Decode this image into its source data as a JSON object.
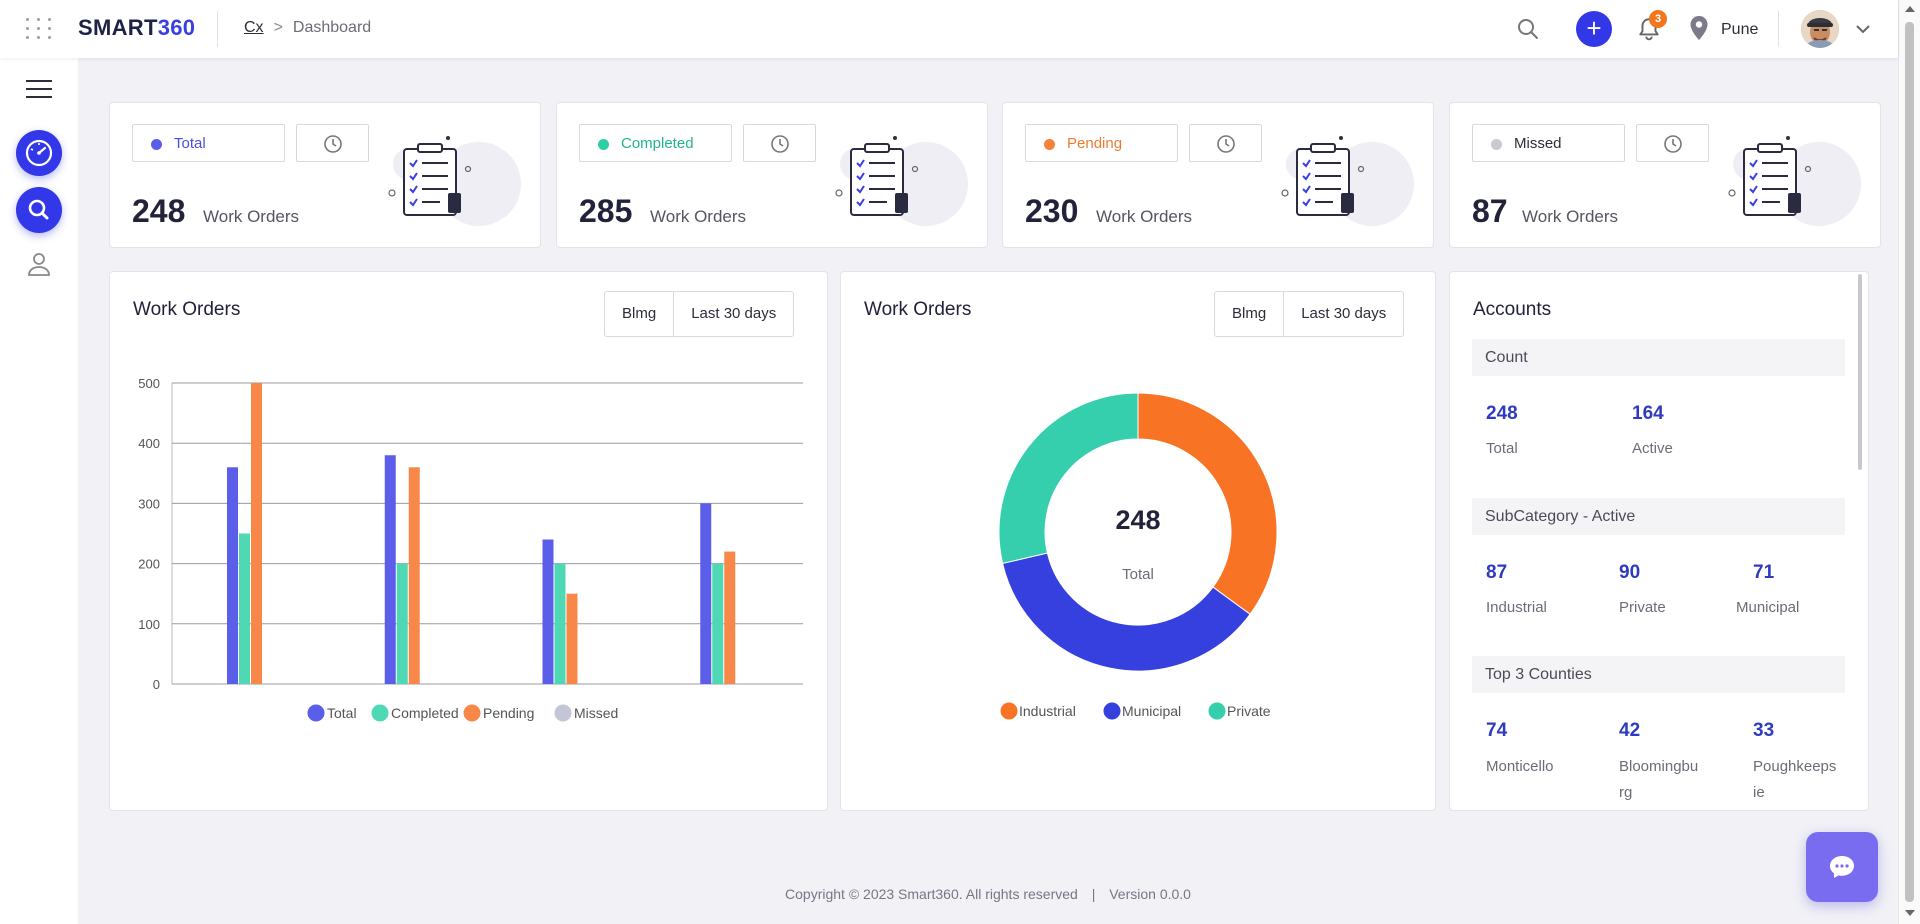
{
  "header": {
    "brand_part1": "SMART",
    "brand_part2": "360",
    "breadcrumb_root": "Cx",
    "breadcrumb_sep": ">",
    "breadcrumb_current": "Dashboard",
    "notifications_count": "3",
    "location": "Pune",
    "add_label": "+"
  },
  "stats": [
    {
      "label": "Total",
      "value": "248",
      "unit": "Work Orders",
      "color": "#5b5ee8"
    },
    {
      "label": "Completed",
      "value": "285",
      "unit": "Work Orders",
      "color": "#2ecfa5"
    },
    {
      "label": "Pending",
      "value": "230",
      "unit": "Work Orders",
      "color": "#f5813a"
    },
    {
      "label": "Missed",
      "value": "87",
      "unit": "Work Orders",
      "color": "#c9c9d2"
    }
  ],
  "bar_panel": {
    "title": "Work Orders",
    "filter1": "Blmg",
    "filter2": "Last 30 days"
  },
  "donut_panel": {
    "title": "Work Orders",
    "filter1": "Blmg",
    "filter2": "Last 30 days",
    "center_value": "248",
    "center_label": "Total"
  },
  "chart_data": [
    {
      "type": "bar",
      "title": "Work Orders",
      "categories": [
        "",
        "",
        "",
        ""
      ],
      "ylim": [
        0,
        500
      ],
      "yticks": [
        0,
        100,
        200,
        300,
        400,
        500
      ],
      "grid": true,
      "legend_position": "bottom",
      "series": [
        {
          "name": "Total",
          "color": "#5b5ee8",
          "values": [
            360,
            380,
            240,
            300
          ]
        },
        {
          "name": "Completed",
          "color": "#4fd8b4",
          "values": [
            250,
            200,
            200,
            200
          ]
        },
        {
          "name": "Pending",
          "color": "#f8884a",
          "values": [
            500,
            360,
            150,
            220
          ]
        },
        {
          "name": "Missed",
          "color": "#c4c6d8",
          "values": [
            0,
            0,
            0,
            0
          ]
        }
      ]
    },
    {
      "type": "pie",
      "title": "Work Orders",
      "donut": true,
      "center_value": "248",
      "center_label": "Total",
      "legend_position": "bottom",
      "slices": [
        {
          "name": "Industrial",
          "color": "#f97324",
          "value": 87
        },
        {
          "name": "Municipal",
          "color": "#3540de",
          "value": 90
        },
        {
          "name": "Private",
          "color": "#35cfad",
          "value": 71
        }
      ]
    }
  ],
  "accounts": {
    "title": "Accounts",
    "sections": [
      {
        "heading": "Count",
        "items": [
          {
            "value": "248",
            "label": "Total"
          },
          {
            "value": "164",
            "label": "Active"
          }
        ]
      },
      {
        "heading": "SubCategory - Active",
        "items": [
          {
            "value": "87",
            "label": "Industrial"
          },
          {
            "value": "90",
            "label": "Private"
          },
          {
            "value": "71",
            "label": "Municipal"
          }
        ]
      },
      {
        "heading": "Top 3 Counties",
        "items": [
          {
            "value": "74",
            "label": "Monticello"
          },
          {
            "value": "42",
            "label": "Bloomingbu rg"
          },
          {
            "value": "33",
            "label": "Poughkeeps ie"
          }
        ]
      }
    ]
  },
  "footer": {
    "copyright": "Copyright © 2023 Smart360. All rights reserved",
    "divider": "|",
    "version": "Version 0.0.0"
  }
}
